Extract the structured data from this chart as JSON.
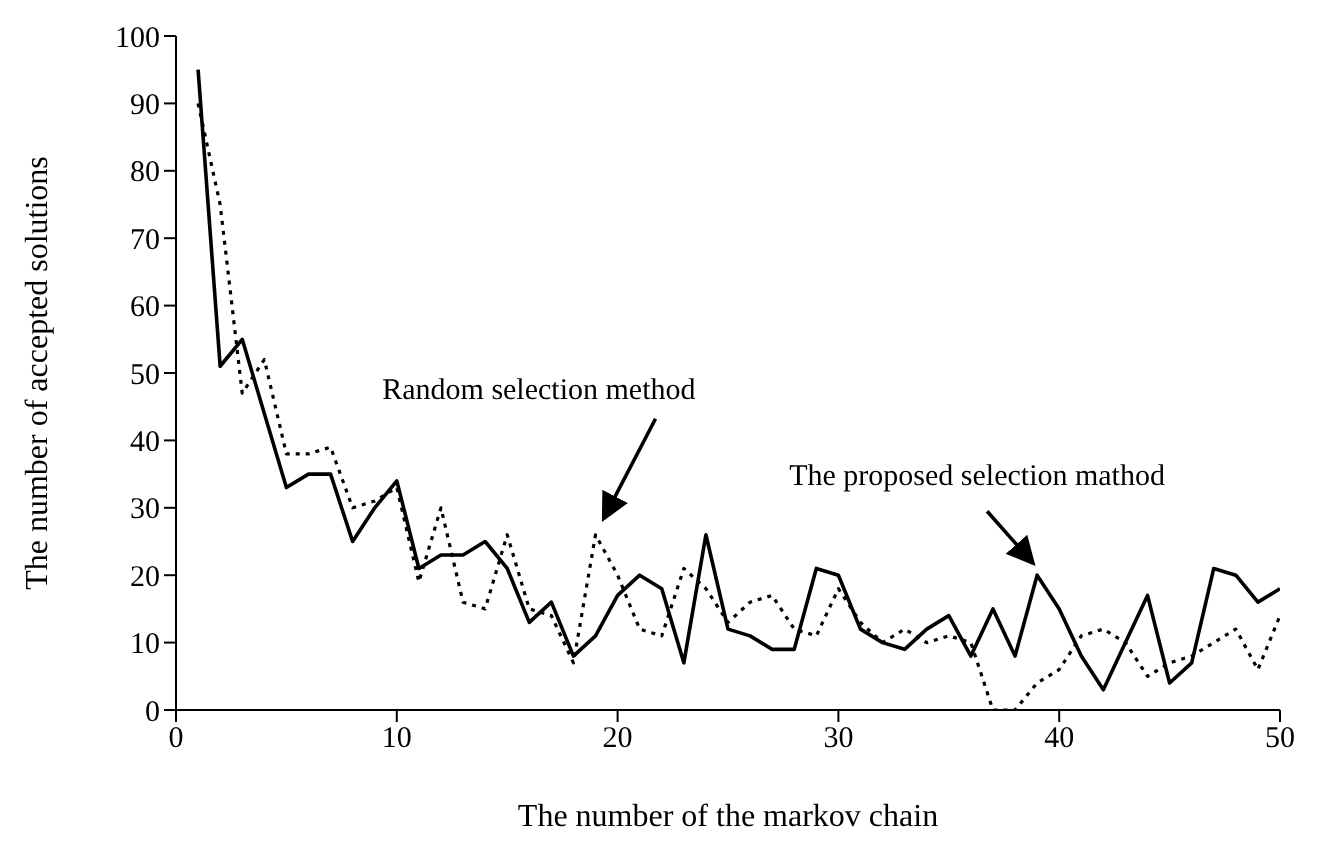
{
  "chart_data": {
    "type": "line",
    "xlabel": "The number of the markov chain",
    "ylabel": "The number of accepted solutions",
    "x": [
      1,
      2,
      3,
      4,
      5,
      6,
      7,
      8,
      9,
      10,
      11,
      12,
      13,
      14,
      15,
      16,
      17,
      18,
      19,
      20,
      21,
      22,
      23,
      24,
      25,
      26,
      27,
      28,
      29,
      30,
      31,
      32,
      33,
      34,
      35,
      36,
      37,
      38,
      39,
      40,
      41,
      42,
      43,
      44,
      45,
      46,
      47,
      48,
      49,
      50
    ],
    "series": [
      {
        "color": "#000000",
        "line_style": "solid",
        "values": [
          95,
          51,
          55,
          44,
          33,
          35,
          35,
          25,
          30,
          34,
          21,
          23,
          23,
          25,
          21,
          13,
          16,
          8,
          11,
          17,
          20,
          18,
          7,
          26,
          12,
          11,
          9,
          9,
          21,
          20,
          12,
          10,
          9,
          12,
          14,
          8,
          15,
          8,
          20,
          15,
          8,
          3,
          10,
          17,
          4,
          7,
          21,
          20,
          16,
          18
        ]
      },
      {
        "color": "#000000",
        "line_style": "dotted",
        "values": [
          90,
          75,
          47,
          52,
          38,
          38,
          39,
          30,
          31,
          33,
          19,
          30,
          16,
          15,
          26,
          15,
          14,
          7,
          26,
          20,
          12,
          11,
          21,
          18,
          13,
          16,
          17,
          12,
          11,
          18,
          13,
          10,
          12,
          10,
          11,
          10,
          0,
          0,
          4,
          6,
          11,
          12,
          10,
          5,
          7,
          8,
          10,
          12,
          6,
          14
        ]
      }
    ],
    "xlim": [
      0,
      50
    ],
    "xticks": [
      0,
      10,
      20,
      30,
      40,
      50
    ],
    "ylim": [
      0,
      100
    ],
    "yticks": [
      0,
      10,
      20,
      30,
      40,
      50,
      60,
      70,
      80,
      90,
      100
    ],
    "annotations": [
      {
        "text": "Random selection method",
        "x": 19,
        "y": 26
      },
      {
        "text": "The proposed selection mathod",
        "x": 39,
        "y": 20
      }
    ],
    "grid": false,
    "legend": false,
    "marker": "none"
  }
}
